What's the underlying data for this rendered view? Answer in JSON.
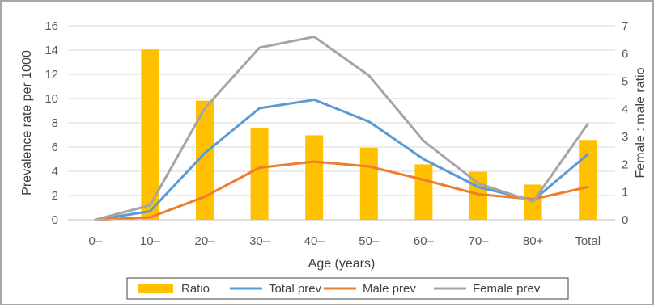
{
  "chart_data": {
    "type": "bar+line",
    "categories": [
      "0–",
      "10–",
      "20–",
      "30–",
      "40–",
      "50–",
      "60–",
      "70–",
      "80+",
      "Total"
    ],
    "xlabel": "Age (years)",
    "ylabel_left": "Prevalence rate per 1000",
    "ylabel_right": "Female : male ratio",
    "ylim_left": [
      0,
      16
    ],
    "yticks_left": [
      0,
      2,
      4,
      6,
      8,
      10,
      12,
      14,
      16
    ],
    "ylim_right": [
      0,
      7
    ],
    "yticks_right": [
      0,
      1,
      2,
      3,
      4,
      5,
      6,
      7
    ],
    "grid": true,
    "legend_position": "bottom",
    "series": [
      {
        "name": "Ratio",
        "kind": "bar",
        "axis": "right",
        "color": "#ffc000",
        "values": [
          null,
          6.15,
          4.3,
          3.3,
          3.05,
          2.6,
          2.0,
          1.73,
          1.27,
          2.88
        ]
      },
      {
        "name": "Total prev",
        "kind": "line",
        "axis": "left",
        "color": "#5b9bd5",
        "values": [
          0,
          0.7,
          5.5,
          9.2,
          9.9,
          8.1,
          5.0,
          2.7,
          1.6,
          5.4
        ]
      },
      {
        "name": "Male prev",
        "kind": "line",
        "axis": "left",
        "color": "#ed7d31",
        "values": [
          0,
          0.2,
          1.9,
          4.3,
          4.8,
          4.4,
          3.3,
          2.1,
          1.7,
          2.7
        ]
      },
      {
        "name": "Female prev",
        "kind": "line",
        "axis": "left",
        "color": "#a5a5a5",
        "values": [
          0,
          1.2,
          9.2,
          14.2,
          15.1,
          11.9,
          6.5,
          3.0,
          1.5,
          7.9
        ]
      }
    ]
  }
}
